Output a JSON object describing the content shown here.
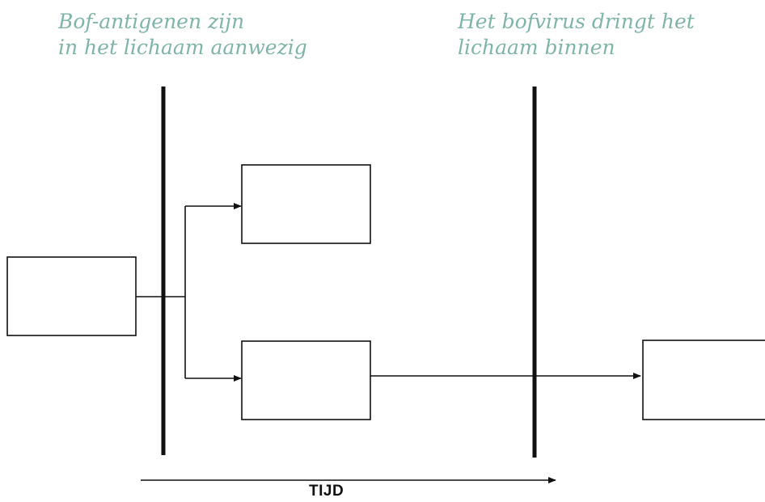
{
  "captions": {
    "left": {
      "line1": "Bof-antigenen zijn",
      "line2": "in het lichaam aanwezig"
    },
    "right": {
      "line1": "Het bofvirus dringt het",
      "line2": "lichaam binnen"
    }
  },
  "time_axis": {
    "label": "TIJD"
  },
  "colors": {
    "caption": "#7fb5a8",
    "lines": "#111111"
  }
}
